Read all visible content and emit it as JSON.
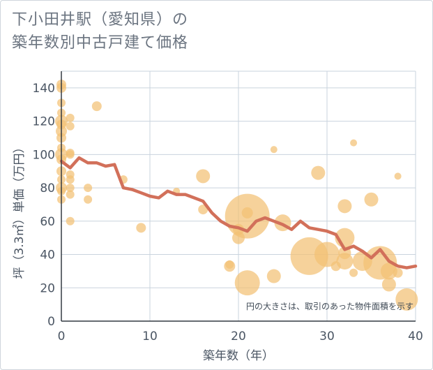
{
  "title_line1": "下小田井駅（愛知県）の",
  "title_line2": "築年数別中古戸建て価格",
  "chart_data": {
    "type": "scatter",
    "xlabel": "築年数（年）",
    "ylabel": "坪（3.3㎡）単価（万円）",
    "xlim": [
      0,
      40
    ],
    "ylim": [
      0,
      150
    ],
    "xticks": [
      0,
      10,
      20,
      30,
      40
    ],
    "yticks": [
      0,
      20,
      40,
      60,
      80,
      100,
      120,
      140
    ],
    "grid": true,
    "note": "円の大きさは、取引のあった物件面積を示す",
    "bubble_color": "#f3c175",
    "line_color": "#d2705a",
    "bubbles": [
      {
        "x": 0,
        "y": 142,
        "s": 7
      },
      {
        "x": 0,
        "y": 140,
        "s": 7
      },
      {
        "x": 0,
        "y": 131,
        "s": 6
      },
      {
        "x": 0,
        "y": 125,
        "s": 6
      },
      {
        "x": 0,
        "y": 120,
        "s": 9
      },
      {
        "x": 0,
        "y": 118,
        "s": 7
      },
      {
        "x": 0,
        "y": 114,
        "s": 8
      },
      {
        "x": 0,
        "y": 110,
        "s": 7
      },
      {
        "x": 0,
        "y": 104,
        "s": 6
      },
      {
        "x": 0,
        "y": 100,
        "s": 9
      },
      {
        "x": 0,
        "y": 97,
        "s": 7
      },
      {
        "x": 0,
        "y": 90,
        "s": 7
      },
      {
        "x": 0,
        "y": 85,
        "s": 6
      },
      {
        "x": 0,
        "y": 80,
        "s": 8
      },
      {
        "x": 0,
        "y": 78,
        "s": 6
      },
      {
        "x": 0,
        "y": 73,
        "s": 6
      },
      {
        "x": 1,
        "y": 122,
        "s": 6
      },
      {
        "x": 1,
        "y": 117,
        "s": 6
      },
      {
        "x": 1,
        "y": 101,
        "s": 6
      },
      {
        "x": 1,
        "y": 100,
        "s": 6
      },
      {
        "x": 1,
        "y": 88,
        "s": 6
      },
      {
        "x": 1,
        "y": 85,
        "s": 6
      },
      {
        "x": 1,
        "y": 80,
        "s": 6
      },
      {
        "x": 1,
        "y": 76,
        "s": 6
      },
      {
        "x": 1,
        "y": 60,
        "s": 6
      },
      {
        "x": 4,
        "y": 129,
        "s": 7
      },
      {
        "x": 3,
        "y": 80,
        "s": 6
      },
      {
        "x": 3,
        "y": 73,
        "s": 6
      },
      {
        "x": 7,
        "y": 85,
        "s": 6
      },
      {
        "x": 9,
        "y": 56,
        "s": 7
      },
      {
        "x": 13,
        "y": 78,
        "s": 5
      },
      {
        "x": 16,
        "y": 87,
        "s": 10
      },
      {
        "x": 16,
        "y": 67,
        "s": 7
      },
      {
        "x": 19,
        "y": 33,
        "s": 8
      },
      {
        "x": 19,
        "y": 34,
        "s": 6
      },
      {
        "x": 20,
        "y": 50,
        "s": 9
      },
      {
        "x": 20,
        "y": 55,
        "s": 8
      },
      {
        "x": 21,
        "y": 63,
        "s": 32
      },
      {
        "x": 21,
        "y": 65,
        "s": 8
      },
      {
        "x": 21,
        "y": 23,
        "s": 18
      },
      {
        "x": 24,
        "y": 103,
        "s": 5
      },
      {
        "x": 24,
        "y": 27,
        "s": 10
      },
      {
        "x": 25,
        "y": 59,
        "s": 12
      },
      {
        "x": 28,
        "y": 39,
        "s": 27
      },
      {
        "x": 29,
        "y": 89,
        "s": 10
      },
      {
        "x": 30,
        "y": 40,
        "s": 18
      },
      {
        "x": 31,
        "y": 33,
        "s": 7
      },
      {
        "x": 32,
        "y": 69,
        "s": 10
      },
      {
        "x": 32,
        "y": 50,
        "s": 14
      },
      {
        "x": 32,
        "y": 41,
        "s": 9
      },
      {
        "x": 32,
        "y": 36,
        "s": 12
      },
      {
        "x": 33,
        "y": 107,
        "s": 5
      },
      {
        "x": 33,
        "y": 29,
        "s": 6
      },
      {
        "x": 34,
        "y": 36,
        "s": 14
      },
      {
        "x": 35,
        "y": 73,
        "s": 10
      },
      {
        "x": 36,
        "y": 35,
        "s": 24
      },
      {
        "x": 37,
        "y": 22,
        "s": 10
      },
      {
        "x": 37,
        "y": 30,
        "s": 12
      },
      {
        "x": 38,
        "y": 87,
        "s": 5
      },
      {
        "x": 38,
        "y": 29,
        "s": 7
      },
      {
        "x": 39,
        "y": 13,
        "s": 16
      }
    ],
    "average_line": {
      "x": [
        0,
        0.5,
        1,
        2,
        3,
        4,
        5,
        6,
        7,
        8,
        9,
        10,
        11,
        12,
        13,
        14,
        15,
        16,
        17,
        18,
        19,
        20,
        21,
        22,
        23,
        24,
        25,
        26,
        27,
        28,
        29,
        30,
        31,
        32,
        33,
        34,
        35,
        36,
        37,
        38,
        39,
        40
      ],
      "y": [
        96,
        94,
        92,
        98,
        95,
        95,
        93,
        94,
        80,
        79,
        77,
        75,
        74,
        78,
        76,
        76,
        74,
        72,
        65,
        60,
        57,
        56,
        54,
        60,
        62,
        60,
        58,
        55,
        60,
        56,
        55,
        54,
        52,
        43,
        45,
        42,
        38,
        43,
        36,
        33,
        32,
        33
      ]
    }
  }
}
